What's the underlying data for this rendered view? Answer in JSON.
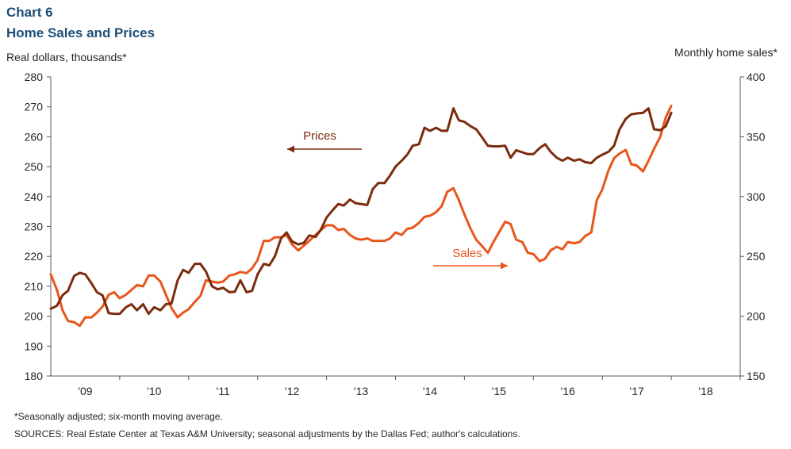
{
  "header": {
    "chart_number": "Chart 6",
    "title": "Home Sales and Prices"
  },
  "axes": {
    "left_title": "Real dollars, thousands*",
    "right_title": "Monthly home sales*"
  },
  "footer": {
    "footnote": "*Seasonally adjusted; six-month moving average.",
    "sources": "SOURCES: Real Estate Center at Texas A&M University; seasonal adjustments by the Dallas Fed; author's calculations."
  },
  "colors": {
    "prices": "#7b2c0e",
    "sales": "#e8561c",
    "axis": "#595959",
    "text": "#262626"
  },
  "chart_data": {
    "type": "line",
    "x_unit": "year (fractional)",
    "xlim": [
      2008.58,
      2018.58
    ],
    "x_ticks": [
      {
        "x": 2009.08,
        "label": "'09"
      },
      {
        "x": 2010.08,
        "label": "'10"
      },
      {
        "x": 2011.08,
        "label": "'11"
      },
      {
        "x": 2012.08,
        "label": "'12"
      },
      {
        "x": 2013.08,
        "label": "'13"
      },
      {
        "x": 2014.08,
        "label": "'14"
      },
      {
        "x": 2015.08,
        "label": "'15"
      },
      {
        "x": 2016.08,
        "label": "'16"
      },
      {
        "x": 2017.08,
        "label": "'17"
      },
      {
        "x": 2018.08,
        "label": "'18"
      }
    ],
    "y_left": {
      "lim": [
        180,
        280
      ],
      "ticks": [
        180,
        190,
        200,
        210,
        220,
        230,
        240,
        250,
        260,
        270,
        280
      ]
    },
    "y_right": {
      "lim": [
        150,
        400
      ],
      "ticks": [
        150,
        200,
        250,
        300,
        350,
        400
      ]
    },
    "grid": false,
    "annotations": [
      {
        "text": "Prices",
        "series": "Prices",
        "arrow": "left"
      },
      {
        "text": "Sales",
        "series": "Sales",
        "arrow": "right"
      }
    ],
    "series": [
      {
        "name": "Prices",
        "axis": "left",
        "x": [
          2008.58,
          2008.67,
          2008.75,
          2008.83,
          2008.92,
          2009.0,
          2009.08,
          2009.17,
          2009.25,
          2009.33,
          2009.42,
          2009.5,
          2009.58,
          2009.67,
          2009.75,
          2009.83,
          2009.92,
          2010.0,
          2010.08,
          2010.17,
          2010.25,
          2010.33,
          2010.42,
          2010.5,
          2010.58,
          2010.67,
          2010.75,
          2010.83,
          2010.92,
          2011.0,
          2011.08,
          2011.17,
          2011.25,
          2011.33,
          2011.42,
          2011.5,
          2011.58,
          2011.67,
          2011.75,
          2011.83,
          2011.92,
          2012.0,
          2012.08,
          2012.17,
          2012.25,
          2012.33,
          2012.42,
          2012.5,
          2012.58,
          2012.67,
          2012.75,
          2012.83,
          2012.92,
          2013.0,
          2013.08,
          2013.17,
          2013.25,
          2013.33,
          2013.42,
          2013.5,
          2013.58,
          2013.67,
          2013.75,
          2013.83,
          2013.92,
          2014.0,
          2014.08,
          2014.17,
          2014.25,
          2014.33,
          2014.42,
          2014.5,
          2014.58,
          2014.67,
          2014.75,
          2014.83,
          2014.92,
          2015.0,
          2015.08,
          2015.17,
          2015.25,
          2015.33,
          2015.42,
          2015.5,
          2015.58,
          2015.67,
          2015.75,
          2015.83,
          2015.92,
          2016.0,
          2016.08,
          2016.17,
          2016.25,
          2016.33,
          2016.42,
          2016.5,
          2016.58,
          2016.67,
          2016.75,
          2016.83,
          2016.92,
          2017.0,
          2017.08,
          2017.17,
          2017.25,
          2017.33,
          2017.42,
          2017.5,
          2017.58
        ],
        "y": [
          202.5,
          203.5,
          207.0,
          208.5,
          213.5,
          214.5,
          214.0,
          211.0,
          208.0,
          207.0,
          201.0,
          200.8,
          200.8,
          203.0,
          204.0,
          202.0,
          204.0,
          200.8,
          203.0,
          202.0,
          204.0,
          204.2,
          212.0,
          215.5,
          214.5,
          217.5,
          217.5,
          215.0,
          210.0,
          209.0,
          209.5,
          208.0,
          208.2,
          212.0,
          208.0,
          208.5,
          214.0,
          217.5,
          217.0,
          220.0,
          226.0,
          228.0,
          225.0,
          224.0,
          224.5,
          227.0,
          226.5,
          229.0,
          233.0,
          235.5,
          237.5,
          237.0,
          239.0,
          237.8,
          237.5,
          237.2,
          242.5,
          244.5,
          244.5,
          247.0,
          250.0,
          252.0,
          254.0,
          257.0,
          257.5,
          263.0,
          262.0,
          263.0,
          262.0,
          262.0,
          269.5,
          265.5,
          265.0,
          263.5,
          262.5,
          260.0,
          257.0,
          256.8,
          256.8,
          257.0,
          253.0,
          255.5,
          254.8,
          254.2,
          254.2,
          256.2,
          257.5,
          255.0,
          253.0,
          252.0,
          253.0,
          252.0,
          252.5,
          251.5,
          251.2,
          253.0,
          254.0,
          255.0,
          257.0,
          262.5,
          266.0,
          267.5,
          267.8,
          268.0,
          269.5,
          262.5,
          262.2,
          263.5,
          268.0
        ]
      },
      {
        "name": "Sales",
        "axis": "right",
        "x": [
          2008.58,
          2008.67,
          2008.75,
          2008.83,
          2008.92,
          2009.0,
          2009.08,
          2009.17,
          2009.25,
          2009.33,
          2009.42,
          2009.5,
          2009.58,
          2009.67,
          2009.75,
          2009.83,
          2009.92,
          2010.0,
          2010.08,
          2010.17,
          2010.25,
          2010.33,
          2010.42,
          2010.5,
          2010.58,
          2010.67,
          2010.75,
          2010.83,
          2010.92,
          2011.0,
          2011.08,
          2011.17,
          2011.25,
          2011.33,
          2011.42,
          2011.5,
          2011.58,
          2011.67,
          2011.75,
          2011.83,
          2011.92,
          2012.0,
          2012.08,
          2012.17,
          2012.25,
          2012.33,
          2012.42,
          2012.5,
          2012.58,
          2012.67,
          2012.75,
          2012.83,
          2012.92,
          2013.0,
          2013.08,
          2013.17,
          2013.25,
          2013.33,
          2013.42,
          2013.5,
          2013.58,
          2013.67,
          2013.75,
          2013.83,
          2013.92,
          2014.0,
          2014.08,
          2014.17,
          2014.25,
          2014.33,
          2014.42,
          2014.5,
          2014.58,
          2014.67,
          2014.75,
          2014.83,
          2014.92,
          2015.0,
          2015.08,
          2015.17,
          2015.25,
          2015.33,
          2015.42,
          2015.5,
          2015.58,
          2015.67,
          2015.75,
          2015.83,
          2015.92,
          2016.0,
          2016.08,
          2016.17,
          2016.25,
          2016.33,
          2016.42,
          2016.5,
          2016.58,
          2016.67,
          2016.75,
          2016.83,
          2016.92,
          2017.0,
          2017.08,
          2017.17,
          2017.25,
          2017.33,
          2017.42,
          2017.5,
          2017.58
        ],
        "y": [
          235,
          222,
          205,
          196,
          195,
          192,
          199,
          199,
          203,
          208,
          218,
          220,
          215,
          218,
          222,
          226,
          225,
          234,
          234,
          229,
          218,
          207,
          199,
          203,
          206,
          212,
          217,
          230,
          229,
          228,
          229,
          234,
          235,
          237,
          236,
          240,
          247,
          263,
          263,
          266,
          266,
          268,
          260,
          255,
          259,
          263,
          268,
          272,
          276,
          276,
          272,
          273,
          268,
          265,
          264,
          265,
          263,
          263,
          263,
          265,
          270,
          268,
          273,
          274,
          278,
          283,
          284,
          287,
          292,
          304,
          307,
          297,
          285,
          273,
          264,
          259,
          253,
          262,
          270,
          279,
          277,
          264,
          262,
          253,
          252,
          246,
          248,
          255,
          258,
          256,
          262,
          261,
          262,
          267,
          270,
          297,
          306,
          322,
          332,
          336,
          339,
          327,
          326,
          321,
          330,
          340,
          350,
          366,
          376
        ]
      }
    ]
  }
}
